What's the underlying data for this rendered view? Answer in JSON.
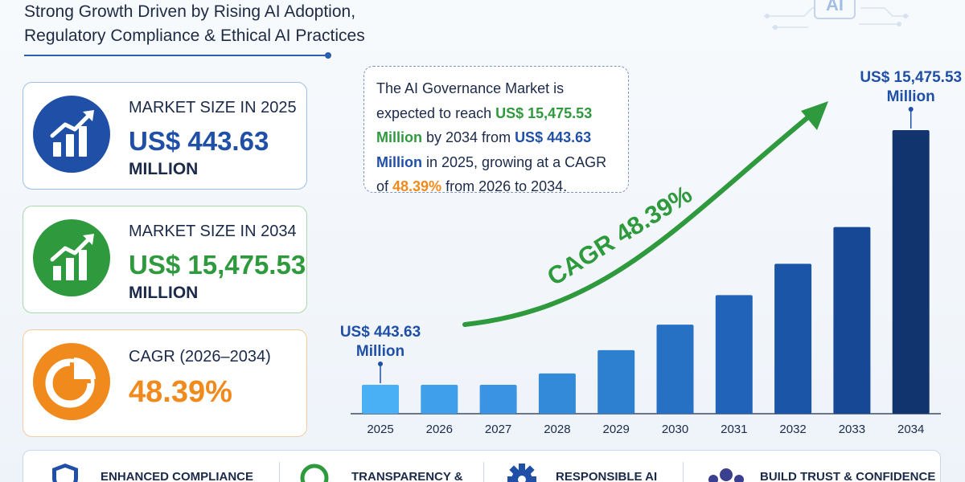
{
  "title": {
    "line1": "Strong Growth Driven by Rising AI Adoption,",
    "line2": "Regulatory Compliance & Ethical AI Practices"
  },
  "badge": "AI",
  "cards": [
    {
      "label": "MARKET SIZE IN 2025",
      "value": "US$ 443.63",
      "unit": "MILLION",
      "icon": "growth-chart-icon",
      "color": "#1f4fa6"
    },
    {
      "label": "MARKET SIZE IN 2034",
      "value": "US$ 15,475.53",
      "unit": "MILLION",
      "icon": "growth-chart-icon",
      "color": "#2f9a3d"
    },
    {
      "label": "CAGR (2026–2034)",
      "value": "48.39%",
      "unit": "",
      "icon": "pie-chart-icon",
      "color": "#f08a1c"
    }
  ],
  "callout": {
    "t1": "The AI Governance Market is expected to reach ",
    "v1": "US$ 15,475.53 Million",
    "t2": " by 2034 from ",
    "v2": "US$ 443.63 Million",
    "t3": " in 2025, growing at a CAGR of ",
    "v3": "48.39%",
    "t4": " from 2026 to 2034."
  },
  "chart_data": {
    "type": "bar",
    "categories": [
      "2025",
      "2026",
      "2027",
      "2028",
      "2029",
      "2030",
      "2031",
      "2032",
      "2033",
      "2034"
    ],
    "values": [
      443.63,
      750,
      1370,
      2200,
      3470,
      4860,
      6470,
      8180,
      10190,
      15475.53
    ],
    "annotations": [
      {
        "category": "2025",
        "line1": "US$ 443.63",
        "line2": "Million"
      },
      {
        "category": "2034",
        "line1": "US$ 15,475.53",
        "line2": "Million"
      }
    ],
    "trend_label": "CAGR 48.39%",
    "colors": [
      "#4ab0f5",
      "#3f9fea",
      "#3a93e3",
      "#338ad9",
      "#2d7fd0",
      "#2771c4",
      "#2063b8",
      "#1b55a8",
      "#174896",
      "#11346f"
    ],
    "trend_color": "#2f9a3d",
    "grid": false
  },
  "features": [
    {
      "label": "ENHANCED COMPLIANCE",
      "icon": "shield-icon"
    },
    {
      "label": "TRANSPARENCY &",
      "icon": "magnifier-icon"
    },
    {
      "label": "RESPONSIBLE AI",
      "icon": "gear-icon"
    },
    {
      "label": "BUILD TRUST & CONFIDENCE",
      "icon": "people-icon"
    }
  ]
}
